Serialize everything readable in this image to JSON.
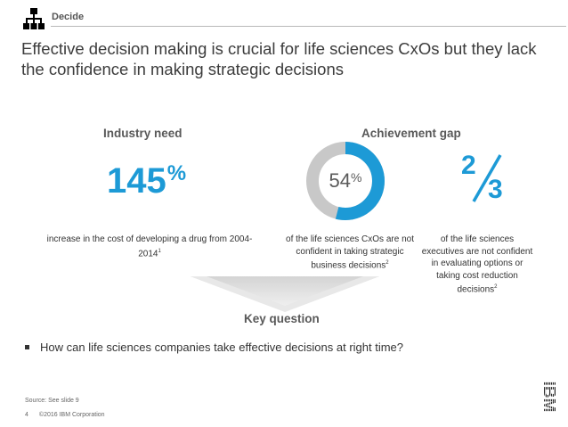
{
  "header": {
    "section": "Decide"
  },
  "title": "Effective decision making is crucial for life sciences CxOs but they lack the confidence in making strategic decisions",
  "industry": {
    "heading": "Industry need",
    "stat_number": "145",
    "stat_unit": "%",
    "caption": "increase in the cost of developing a drug from 2004-2014",
    "caption_note": "1"
  },
  "achievement": {
    "heading": "Achievement gap",
    "donut": {
      "value_label": "54",
      "unit": "%",
      "fraction": 0.54,
      "colors": {
        "filled": "#1d9ad6",
        "remaining": "#c8c8c8"
      }
    },
    "donut_caption": "of the life sciences CxOs are not confident in taking strategic business decisions",
    "donut_caption_note": "2",
    "fraction": {
      "numerator": "2",
      "denominator": "3"
    },
    "fraction_caption": "of the life sciences executives are not confident in evaluating options or taking cost reduction decisions",
    "fraction_caption_note": "2"
  },
  "key_question": {
    "heading": "Key question",
    "bullet": "How can life sciences companies take effective decisions at right time?"
  },
  "footer": {
    "source": "Source: See slide 9",
    "page": "4",
    "copyright": "©2016 IBM Corporation",
    "logo_text": "IBM"
  },
  "colors": {
    "accent": "#1d9ad6",
    "heading": "#595959",
    "text": "#333333"
  }
}
